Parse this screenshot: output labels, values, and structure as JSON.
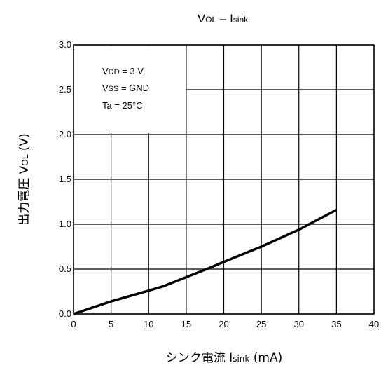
{
  "chart_data": {
    "type": "line",
    "title": {
      "main": "V",
      "main_sub": "OL",
      "sep": " – I",
      "sep_sub": "sink"
    },
    "xlabel": {
      "prefix": "シンク電流   I",
      "sub": "sink",
      "suffix": "   (mA)"
    },
    "ylabel": {
      "prefix": "出力電圧   V",
      "sub": "OL",
      "suffix": "   (V)"
    },
    "xlim": [
      0,
      40
    ],
    "ylim": [
      0.0,
      3.0
    ],
    "x_ticks": [
      "0",
      "5",
      "10",
      "15",
      "20",
      "25",
      "30",
      "35",
      "40"
    ],
    "y_ticks": [
      "0.0",
      "0.5",
      "1.0",
      "1.5",
      "2.0",
      "2.5",
      "3.0"
    ],
    "grid": true,
    "conditions": [
      {
        "name": "V",
        "sub": "DD",
        "value": " = 3 V"
      },
      {
        "name": "V",
        "sub": "SS",
        "value": " = GND"
      },
      {
        "name": "Ta",
        "sub": "",
        "value": " = 25°C"
      }
    ],
    "series": [
      {
        "x": [
          0,
          5,
          10,
          12,
          15,
          18,
          20,
          25,
          30,
          35
        ],
        "y": [
          0.0,
          0.14,
          0.26,
          0.31,
          0.41,
          0.51,
          0.58,
          0.75,
          0.94,
          1.16
        ],
        "color": "#000000"
      }
    ]
  }
}
